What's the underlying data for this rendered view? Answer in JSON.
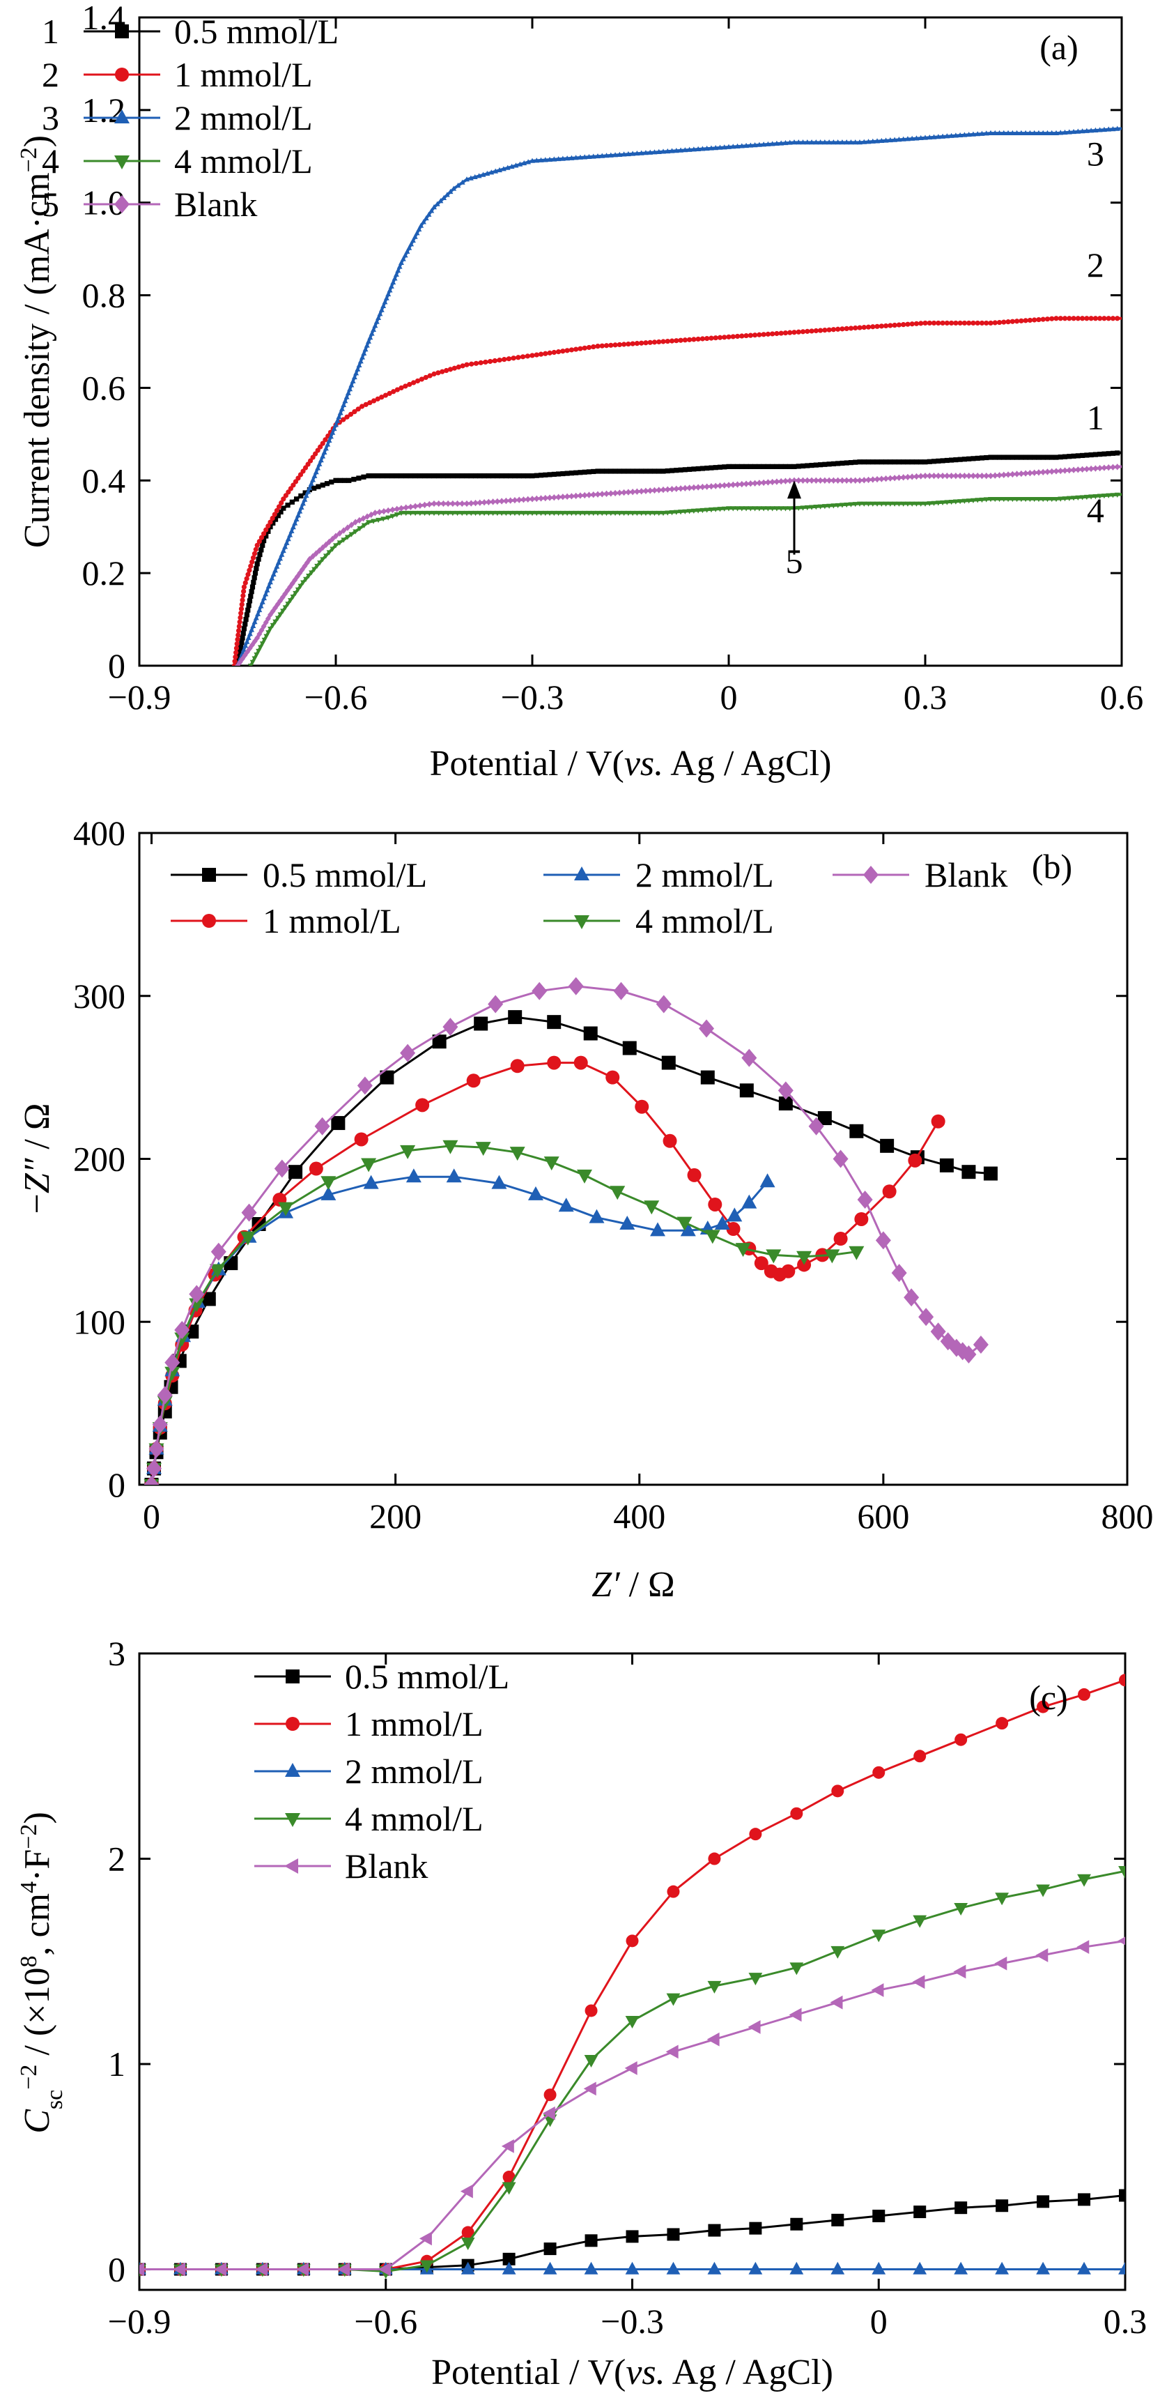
{
  "chart_data": [
    {
      "panel": "(a)",
      "type": "line",
      "xlabel": "Potential / V(vs. Ag / AgCl)",
      "xlabel_parts": [
        "Potential / V(",
        "vs.",
        " Ag / AgCl)"
      ],
      "ylabel": "Current density / (mA·cm⁻²)",
      "ylabel_parts": [
        "Current density / (mA·cm",
        "−2",
        ")"
      ],
      "xlim": [
        -0.9,
        0.6
      ],
      "ylim": [
        0,
        1.4
      ],
      "xticks": [
        -0.9,
        -0.6,
        -0.3,
        0,
        0.3,
        0.6
      ],
      "xtick_labels": [
        "−0.9",
        "−0.6",
        "−0.3",
        "0",
        "0.3",
        "0.6"
      ],
      "yticks": [
        0,
        0.2,
        0.4,
        0.6,
        0.8,
        1.0,
        1.2,
        1.4
      ],
      "ytick_labels": [
        "0",
        "0.2",
        "0.4",
        "0.6",
        "0.8",
        "1.0",
        "1.2",
        "1.4"
      ],
      "grid": false,
      "legend_position": "top-left",
      "legend": [
        {
          "num": "1",
          "name": "0.5 mmol/L"
        },
        {
          "num": "2",
          "name": "1 mmol/L"
        },
        {
          "num": "3",
          "name": "2 mmol/L"
        },
        {
          "num": "4",
          "name": "4 mmol/L"
        },
        {
          "num": "5",
          "name": "Blank"
        }
      ],
      "curve_labels": [
        {
          "text": "1",
          "x": 0.56,
          "y": 0.51
        },
        {
          "text": "2",
          "x": 0.56,
          "y": 0.84
        },
        {
          "text": "3",
          "x": 0.56,
          "y": 1.08
        },
        {
          "text": "4",
          "x": 0.56,
          "y": 0.31
        },
        {
          "text": "5",
          "x": 0.1,
          "y": 0.2
        }
      ],
      "arrow": {
        "x": 0.1,
        "y_from": 0.24,
        "y_to": 0.4
      },
      "series": [
        {
          "name": "0.5 mmol/L",
          "color": "#000000",
          "marker": "square",
          "x": [
            -0.75,
            -0.74,
            -0.73,
            -0.72,
            -0.71,
            -0.7,
            -0.68,
            -0.66,
            -0.64,
            -0.62,
            -0.6,
            -0.58,
            -0.55,
            -0.5,
            -0.45,
            -0.4,
            -0.3,
            -0.2,
            -0.1,
            0,
            0.1,
            0.2,
            0.3,
            0.4,
            0.5,
            0.6
          ],
          "y": [
            0,
            0.08,
            0.15,
            0.22,
            0.27,
            0.3,
            0.34,
            0.36,
            0.38,
            0.39,
            0.4,
            0.4,
            0.41,
            0.41,
            0.41,
            0.41,
            0.41,
            0.42,
            0.42,
            0.43,
            0.43,
            0.44,
            0.44,
            0.45,
            0.45,
            0.46
          ]
        },
        {
          "name": "1 mmol/L",
          "color": "#e0141c",
          "marker": "circle",
          "x": [
            -0.755,
            -0.74,
            -0.72,
            -0.7,
            -0.68,
            -0.65,
            -0.62,
            -0.6,
            -0.56,
            -0.5,
            -0.45,
            -0.4,
            -0.35,
            -0.3,
            -0.2,
            -0.1,
            0,
            0.1,
            0.2,
            0.3,
            0.4,
            0.5,
            0.6
          ],
          "y": [
            0,
            0.17,
            0.26,
            0.31,
            0.36,
            0.42,
            0.48,
            0.52,
            0.56,
            0.6,
            0.63,
            0.65,
            0.66,
            0.67,
            0.69,
            0.7,
            0.71,
            0.72,
            0.73,
            0.74,
            0.74,
            0.75,
            0.75
          ]
        },
        {
          "name": "2 mmol/L",
          "color": "#1f5fb5",
          "marker": "triangle-up",
          "x": [
            -0.75,
            -0.7,
            -0.65,
            -0.6,
            -0.55,
            -0.5,
            -0.47,
            -0.45,
            -0.42,
            -0.4,
            -0.35,
            -0.3,
            -0.2,
            -0.1,
            0,
            0.1,
            0.2,
            0.3,
            0.4,
            0.5,
            0.6
          ],
          "y": [
            0,
            0.18,
            0.35,
            0.52,
            0.7,
            0.87,
            0.95,
            0.99,
            1.03,
            1.05,
            1.07,
            1.09,
            1.1,
            1.11,
            1.12,
            1.13,
            1.13,
            1.14,
            1.15,
            1.15,
            1.16
          ]
        },
        {
          "name": "4 mmol/L",
          "color": "#3a8a2a",
          "marker": "triangle-down",
          "x": [
            -0.73,
            -0.7,
            -0.65,
            -0.62,
            -0.6,
            -0.57,
            -0.55,
            -0.52,
            -0.5,
            -0.45,
            -0.4,
            -0.3,
            -0.2,
            -0.1,
            0,
            0.1,
            0.2,
            0.3,
            0.4,
            0.5,
            0.6
          ],
          "y": [
            0,
            0.08,
            0.18,
            0.23,
            0.26,
            0.29,
            0.31,
            0.32,
            0.33,
            0.33,
            0.33,
            0.33,
            0.33,
            0.33,
            0.34,
            0.34,
            0.35,
            0.35,
            0.36,
            0.36,
            0.37
          ]
        },
        {
          "name": "Blank",
          "color": "#b467b8",
          "marker": "diamond",
          "x": [
            -0.75,
            -0.72,
            -0.7,
            -0.67,
            -0.64,
            -0.6,
            -0.57,
            -0.54,
            -0.5,
            -0.45,
            -0.4,
            -0.3,
            -0.2,
            -0.1,
            0,
            0.1,
            0.2,
            0.3,
            0.4,
            0.5,
            0.6
          ],
          "y": [
            0,
            0.06,
            0.11,
            0.17,
            0.23,
            0.28,
            0.31,
            0.33,
            0.34,
            0.35,
            0.35,
            0.36,
            0.37,
            0.38,
            0.39,
            0.4,
            0.4,
            0.41,
            0.41,
            0.42,
            0.43
          ]
        }
      ]
    },
    {
      "panel": "(b)",
      "type": "scatter",
      "xlabel": "Z′ / Ω",
      "xlabel_parts": [
        "Z′",
        " / Ω"
      ],
      "ylabel": "−Z″ / Ω",
      "ylabel_parts": [
        "−",
        "Z″",
        " / Ω"
      ],
      "xlim": [
        -10,
        800
      ],
      "ylim": [
        0,
        400
      ],
      "xticks": [
        0,
        200,
        400,
        600,
        800
      ],
      "xtick_labels": [
        "0",
        "200",
        "400",
        "600",
        "800"
      ],
      "yticks": [
        0,
        100,
        200,
        300,
        400
      ],
      "ytick_labels": [
        "0",
        "100",
        "200",
        "300",
        "400"
      ],
      "grid": false,
      "legend_position": "top",
      "series": [
        {
          "name": "0.5 mmol/L",
          "color": "#000000",
          "marker": "square",
          "x": [
            0,
            2,
            4,
            7,
            11,
            16,
            23,
            33,
            47,
            65,
            88,
            118,
            153,
            193,
            236,
            270,
            298,
            330,
            360,
            392,
            424,
            456,
            488,
            520,
            552,
            578,
            603,
            628,
            652,
            670,
            688
          ],
          "y": [
            0,
            10,
            20,
            32,
            45,
            60,
            76,
            94,
            114,
            136,
            160,
            192,
            222,
            250,
            272,
            283,
            287,
            284,
            277,
            268,
            259,
            250,
            242,
            234,
            225,
            217,
            208,
            201,
            196,
            192,
            191
          ]
        },
        {
          "name": "1 mmol/L",
          "color": "#e0141c",
          "marker": "circle",
          "x": [
            0,
            2,
            4,
            7,
            11,
            17,
            25,
            36,
            52,
            76,
            105,
            135,
            172,
            222,
            264,
            300,
            330,
            352,
            378,
            402,
            425,
            445,
            462,
            477,
            490,
            500,
            508,
            515,
            522,
            535,
            550,
            565,
            582,
            605,
            626,
            645
          ],
          "y": [
            0,
            10,
            22,
            35,
            50,
            67,
            86,
            107,
            129,
            152,
            175,
            194,
            212,
            233,
            248,
            257,
            259,
            259,
            250,
            232,
            211,
            190,
            172,
            157,
            145,
            136,
            131,
            129,
            131,
            135,
            141,
            151,
            163,
            180,
            199,
            223
          ]
        },
        {
          "name": "2 mmol/L",
          "color": "#1f5fb5",
          "marker": "triangle-up",
          "x": [
            0,
            2,
            4,
            7,
            11,
            17,
            26,
            38,
            55,
            80,
            110,
            145,
            180,
            215,
            248,
            285,
            315,
            340,
            365,
            390,
            415,
            440,
            456,
            468,
            478,
            490,
            505
          ],
          "y": [
            0,
            10,
            22,
            36,
            52,
            70,
            91,
            112,
            132,
            152,
            167,
            178,
            185,
            189,
            189,
            185,
            178,
            171,
            164,
            160,
            156,
            156,
            157,
            160,
            165,
            173,
            186
          ]
        },
        {
          "name": "4 mmol/L",
          "color": "#3a8a2a",
          "marker": "triangle-down",
          "x": [
            0,
            2,
            4,
            7,
            11,
            17,
            25,
            37,
            54,
            79,
            110,
            145,
            178,
            210,
            245,
            272,
            300,
            328,
            355,
            382,
            410,
            437,
            460,
            485,
            510,
            535,
            558,
            578
          ],
          "y": [
            0,
            10,
            22,
            35,
            51,
            69,
            90,
            111,
            132,
            152,
            170,
            186,
            197,
            205,
            208,
            207,
            204,
            198,
            190,
            180,
            171,
            161,
            153,
            145,
            141,
            140,
            141,
            143
          ]
        },
        {
          "name": "Blank",
          "color": "#b467b8",
          "marker": "diamond",
          "x": [
            0,
            2,
            4,
            7,
            11,
            17,
            25,
            37,
            55,
            80,
            107,
            140,
            175,
            210,
            245,
            282,
            318,
            348,
            385,
            420,
            455,
            490,
            520,
            545,
            565,
            585,
            600,
            613,
            623,
            635,
            645,
            653,
            660,
            665,
            670,
            680
          ],
          "y": [
            0,
            10,
            22,
            37,
            55,
            75,
            95,
            117,
            143,
            167,
            194,
            220,
            245,
            265,
            281,
            295,
            303,
            306,
            303,
            295,
            280,
            262,
            242,
            220,
            200,
            175,
            150,
            130,
            115,
            103,
            94,
            88,
            84,
            82,
            80,
            86
          ]
        }
      ]
    },
    {
      "panel": "(c)",
      "type": "line",
      "xlabel": "Potential / V(vs. Ag / AgCl)",
      "xlabel_parts": [
        "Potential / V(",
        "vs.",
        " Ag / AgCl)"
      ],
      "ylabel": "C_sc^−2 / (×10^8, cm^4·F^−2)",
      "ylabel_parts": [
        "C",
        "sc",
        "−2",
        " / (×10",
        "8",
        ", cm",
        "4",
        "·F",
        "−2",
        ")"
      ],
      "xlim": [
        -0.9,
        0.3
      ],
      "ylim": [
        -0.1,
        3
      ],
      "xticks": [
        -0.9,
        -0.6,
        -0.3,
        0,
        0.3
      ],
      "xtick_labels": [
        "−0.9",
        "−0.6",
        "−0.3",
        "0",
        "0.3"
      ],
      "yticks": [
        0,
        1,
        2,
        3
      ],
      "ytick_labels": [
        "0",
        "1",
        "2",
        "3"
      ],
      "grid": false,
      "legend_position": "top-left",
      "series": [
        {
          "name": "0.5 mmol/L",
          "color": "#000000",
          "marker": "square",
          "x": [
            -0.9,
            -0.85,
            -0.8,
            -0.75,
            -0.7,
            -0.65,
            -0.6,
            -0.55,
            -0.5,
            -0.45,
            -0.4,
            -0.35,
            -0.3,
            -0.25,
            -0.2,
            -0.15,
            -0.1,
            -0.05,
            0,
            0.05,
            0.1,
            0.15,
            0.2,
            0.25,
            0.3
          ],
          "y": [
            0,
            0,
            0,
            0,
            0,
            0,
            0,
            0.01,
            0.02,
            0.05,
            0.1,
            0.14,
            0.16,
            0.17,
            0.19,
            0.2,
            0.22,
            0.24,
            0.26,
            0.28,
            0.3,
            0.31,
            0.33,
            0.34,
            0.36
          ]
        },
        {
          "name": "1 mmol/L",
          "color": "#e0141c",
          "marker": "circle",
          "x": [
            -0.9,
            -0.85,
            -0.8,
            -0.75,
            -0.7,
            -0.65,
            -0.6,
            -0.55,
            -0.5,
            -0.45,
            -0.4,
            -0.35,
            -0.3,
            -0.25,
            -0.2,
            -0.15,
            -0.1,
            -0.05,
            0,
            0.05,
            0.1,
            0.15,
            0.2,
            0.25,
            0.3
          ],
          "y": [
            0,
            0,
            0,
            0,
            0,
            0,
            0,
            0.04,
            0.18,
            0.45,
            0.85,
            1.26,
            1.6,
            1.84,
            2.0,
            2.12,
            2.22,
            2.33,
            2.42,
            2.5,
            2.58,
            2.66,
            2.74,
            2.8,
            2.87
          ]
        },
        {
          "name": "2 mmol/L",
          "color": "#1f5fb5",
          "marker": "triangle-up",
          "x": [
            -0.9,
            -0.85,
            -0.8,
            -0.75,
            -0.7,
            -0.65,
            -0.6,
            -0.55,
            -0.5,
            -0.45,
            -0.4,
            -0.35,
            -0.3,
            -0.25,
            -0.2,
            -0.15,
            -0.1,
            -0.05,
            0,
            0.05,
            0.1,
            0.15,
            0.2,
            0.25,
            0.3
          ],
          "y": [
            0,
            0,
            0,
            0,
            0,
            0,
            0,
            0,
            0,
            0,
            0,
            0,
            0,
            0,
            0,
            0,
            0,
            0,
            0,
            0,
            0,
            0,
            0,
            0,
            0
          ]
        },
        {
          "name": "4 mmol/L",
          "color": "#3a8a2a",
          "marker": "triangle-down",
          "x": [
            -0.9,
            -0.85,
            -0.8,
            -0.75,
            -0.7,
            -0.65,
            -0.6,
            -0.55,
            -0.5,
            -0.45,
            -0.4,
            -0.35,
            -0.3,
            -0.25,
            -0.2,
            -0.15,
            -0.1,
            -0.05,
            0,
            0.05,
            0.1,
            0.15,
            0.2,
            0.25,
            0.3
          ],
          "y": [
            0,
            0,
            0,
            0,
            0,
            0,
            -0.01,
            0.02,
            0.13,
            0.4,
            0.73,
            1.02,
            1.21,
            1.32,
            1.38,
            1.42,
            1.47,
            1.55,
            1.63,
            1.7,
            1.76,
            1.81,
            1.85,
            1.9,
            1.94
          ]
        },
        {
          "name": "Blank",
          "color": "#b467b8",
          "marker": "triangle-left",
          "x": [
            -0.9,
            -0.85,
            -0.8,
            -0.75,
            -0.7,
            -0.65,
            -0.6,
            -0.55,
            -0.5,
            -0.45,
            -0.4,
            -0.35,
            -0.3,
            -0.25,
            -0.2,
            -0.15,
            -0.1,
            -0.05,
            0,
            0.05,
            0.1,
            0.15,
            0.2,
            0.25,
            0.3
          ],
          "y": [
            0,
            0,
            0,
            0,
            0,
            0,
            0,
            0.15,
            0.38,
            0.6,
            0.76,
            0.88,
            0.98,
            1.06,
            1.12,
            1.18,
            1.24,
            1.3,
            1.36,
            1.4,
            1.45,
            1.49,
            1.53,
            1.57,
            1.6
          ]
        }
      ]
    }
  ]
}
